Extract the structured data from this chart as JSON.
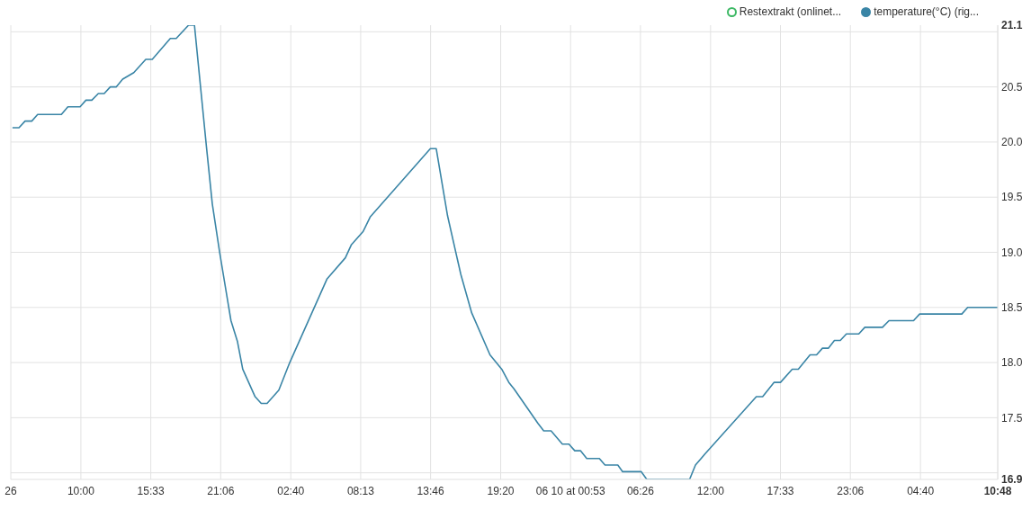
{
  "chart_data": {
    "type": "line",
    "x": [
      "--06-08T04:34",
      "--06-08T05:05",
      "--06-08T05:34",
      "--06-08T06:06",
      "--06-08T06:34",
      "--06-08T08:27",
      "--06-08T08:58",
      "--06-08T09:56",
      "--06-08T10:24",
      "--06-08T10:52",
      "--06-08T11:23",
      "--06-08T11:51",
      "--06-08T12:20",
      "--06-08T12:48",
      "--06-08T13:19",
      "--06-08T14:12",
      "--06-08T15:09",
      "--06-08T15:40",
      "--06-08T17:06",
      "--06-08T17:34",
      "--06-08T18:33",
      "--06-08T19:01",
      "--06-08T19:58",
      "--06-08T20:26",
      "--06-08T21:01",
      "--06-08T21:55",
      "--06-08T22:26",
      "--06-08T22:51",
      "--06-08T23:50",
      "--06-09T00:19",
      "--06-09T00:47",
      "--06-09T01:43",
      "--06-09T02:35",
      "--06-09T05:33",
      "--06-09T07:00",
      "--06-09T07:29",
      "--06-09T08:25",
      "--06-09T08:58",
      "--06-09T13:45",
      "--06-09T14:13",
      "--06-09T15:07",
      "--06-09T16:10",
      "--06-09T17:02",
      "--06-09T18:29",
      "--06-09T19:25",
      "--06-09T19:59",
      "--06-09T20:24",
      "--06-09T22:17",
      "--06-09T22:45",
      "--06-09T23:20",
      "--06-10T00:14",
      "--06-10T00:45",
      "--06-10T01:13",
      "--06-10T01:41",
      "--06-10T02:10",
      "--06-10T03:10",
      "--06-10T03:37",
      "--06-10T04:38",
      "--06-10T05:01",
      "--06-10T06:30",
      "--06-10T06:56",
      "--06-10T10:20",
      "--06-10T10:48",
      "--06-10T11:33",
      "--06-10T15:38",
      "--06-10T16:08",
      "--06-10T17:02",
      "--06-10T17:33",
      "--06-10T18:29",
      "--06-10T18:58",
      "--06-10T19:54",
      "--06-10T20:25",
      "--06-10T20:53",
      "--06-10T21:21",
      "--06-10T21:50",
      "--06-10T22:18",
      "--06-10T22:47",
      "--06-10T23:46",
      "--06-11T00:15",
      "--06-11T01:39",
      "--06-11T02:10",
      "--06-11T04:07",
      "--06-11T04:36",
      "--06-11T07:57",
      "--06-11T08:25",
      "--06-11T10:48"
    ],
    "series": [
      {
        "name": "Restextrakt (onlinet...",
        "color": "#3cb864",
        "values": [
          null,
          null,
          null,
          null,
          null,
          null,
          null,
          null,
          null,
          null,
          null,
          null,
          null,
          null,
          null,
          null,
          null,
          null,
          null,
          null,
          null,
          null,
          null,
          null,
          null,
          null,
          null,
          null,
          null,
          null,
          null,
          null,
          null,
          null,
          null,
          null,
          null,
          null,
          null,
          null,
          null,
          null,
          null,
          null,
          null,
          null,
          null,
          null,
          null,
          null,
          null,
          null,
          null,
          null,
          null,
          null,
          null,
          null,
          null,
          null,
          null,
          null,
          null,
          null,
          null,
          null,
          null,
          null,
          null,
          null,
          null,
          null,
          null,
          null,
          null,
          null,
          null,
          null,
          null,
          null,
          null,
          null,
          null,
          null,
          null,
          null
        ]
      },
      {
        "name": "temperature(°C) (rig...",
        "color": "#3a85a6",
        "values": [
          20.13,
          20.13,
          20.19,
          20.19,
          20.25,
          20.25,
          20.32,
          20.32,
          20.38,
          20.38,
          20.44,
          20.44,
          20.5,
          20.5,
          20.57,
          20.63,
          20.75,
          20.75,
          20.94,
          20.94,
          21.06,
          21.06,
          19.96,
          19.44,
          19.0,
          18.38,
          18.19,
          17.94,
          17.69,
          17.63,
          17.63,
          17.75,
          18.0,
          18.76,
          18.95,
          19.07,
          19.19,
          19.32,
          19.94,
          19.94,
          19.33,
          18.8,
          18.45,
          18.07,
          17.94,
          17.82,
          17.76,
          17.45,
          17.38,
          17.38,
          17.26,
          17.26,
          17.2,
          17.2,
          17.13,
          17.13,
          17.07,
          17.07,
          17.01,
          17.01,
          16.94,
          16.94,
          17.07,
          17.17,
          17.69,
          17.69,
          17.82,
          17.82,
          17.94,
          17.94,
          18.07,
          18.07,
          18.13,
          18.13,
          18.2,
          18.2,
          18.26,
          18.26,
          18.32,
          18.32,
          18.38,
          18.38,
          18.44,
          18.44,
          18.5,
          18.5
        ]
      }
    ],
    "xlim": [
      "--06-08T04:26",
      "--06-11T10:48"
    ],
    "xticks": [
      {
        "value": "--06-08T04:26",
        "label": "26"
      },
      {
        "value": "--06-08T10:00",
        "label": "10:00"
      },
      {
        "value": "--06-08T15:33",
        "label": "15:33"
      },
      {
        "value": "--06-08T21:06",
        "label": "21:06"
      },
      {
        "value": "--06-09T02:40",
        "label": "02:40"
      },
      {
        "value": "--06-09T08:13",
        "label": "08:13"
      },
      {
        "value": "--06-09T13:46",
        "label": "13:46"
      },
      {
        "value": "--06-09T19:20",
        "label": "19:20"
      },
      {
        "value": "--06-10T00:53",
        "label": "06 10 at 00:53"
      },
      {
        "value": "--06-10T06:26",
        "label": "06:26"
      },
      {
        "value": "--06-10T12:00",
        "label": "12:00"
      },
      {
        "value": "--06-10T17:33",
        "label": "17:33"
      },
      {
        "value": "--06-10T23:06",
        "label": "23:06"
      },
      {
        "value": "--06-11T04:40",
        "label": "04:40"
      },
      {
        "value": "--06-11T10:48",
        "label": "10:48"
      }
    ],
    "ylim": [
      16.94,
      21.06
    ],
    "yticks": [
      {
        "value": 16.94,
        "label": "16.9"
      },
      {
        "value": 17,
        "label": null
      },
      17.5,
      {
        "value": 18,
        "label": "18.0"
      },
      18.5,
      {
        "value": 19,
        "label": "19.0"
      },
      19.5,
      {
        "value": 20,
        "label": "20.0"
      },
      20.5,
      {
        "value": 21,
        "label": null
      },
      {
        "value": 21.06,
        "label": "21.1"
      }
    ],
    "grid": true,
    "legend": "top right",
    "marker": "none"
  }
}
